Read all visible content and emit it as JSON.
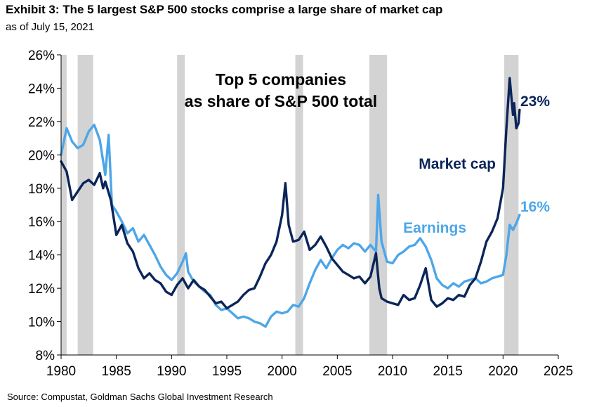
{
  "header": {
    "title": "Exhibit 3: The 5 largest S&P 500 stocks comprise a large share of market cap",
    "subtitle": "as of July 15, 2021"
  },
  "footer": {
    "source": "Source: Compustat, Goldman Sachs Global Investment Research"
  },
  "colors": {
    "market_cap": "#0b2559",
    "earnings": "#4da6e8",
    "recession": "#d3d3d3",
    "axis": "#000000"
  },
  "chart_data": {
    "type": "line",
    "title_lines": [
      "Top 5 companies",
      "as share of S&P 500 total"
    ],
    "xlabel": "",
    "ylabel": "",
    "xlim": [
      1980,
      2025
    ],
    "ylim": [
      8,
      26
    ],
    "x_ticks": [
      1980,
      1985,
      1990,
      1995,
      2000,
      2005,
      2010,
      2015,
      2020,
      2025
    ],
    "x_tick_labels": [
      "1980",
      "1985",
      "1990",
      "1995",
      "2000",
      "2005",
      "2010",
      "2015",
      "2020",
      "2025"
    ],
    "y_ticks": [
      8,
      10,
      12,
      14,
      16,
      18,
      20,
      22,
      24,
      26
    ],
    "y_tick_labels": [
      "8%",
      "10%",
      "12%",
      "14%",
      "16%",
      "18%",
      "20%",
      "22%",
      "24%",
      "26%"
    ],
    "grid": false,
    "recessions": [
      [
        1980.0,
        1980.5
      ],
      [
        1981.5,
        1982.9
      ],
      [
        1990.5,
        1991.2
      ],
      [
        2001.2,
        2001.9
      ],
      [
        2007.9,
        2009.5
      ],
      [
        2020.1,
        2021.4
      ]
    ],
    "series": [
      {
        "name": "Market cap",
        "end_label": "23%",
        "color": "#0b2559",
        "x": [
          1980.0,
          1980.5,
          1981.0,
          1981.5,
          1982.0,
          1982.5,
          1983.0,
          1983.5,
          1983.8,
          1984.0,
          1984.5,
          1985.0,
          1985.5,
          1986.0,
          1986.5,
          1987.0,
          1987.5,
          1988.0,
          1988.5,
          1989.0,
          1989.5,
          1990.0,
          1990.5,
          1991.0,
          1991.5,
          1992.0,
          1992.5,
          1993.0,
          1993.5,
          1994.0,
          1994.5,
          1995.0,
          1995.5,
          1996.0,
          1996.5,
          1997.0,
          1997.5,
          1998.0,
          1998.5,
          1999.0,
          1999.5,
          2000.0,
          2000.3,
          2000.6,
          2001.0,
          2001.5,
          2002.0,
          2002.5,
          2003.0,
          2003.5,
          2004.0,
          2004.5,
          2005.0,
          2005.5,
          2006.0,
          2006.5,
          2007.0,
          2007.5,
          2008.0,
          2008.5,
          2008.8,
          2009.0,
          2009.5,
          2010.0,
          2010.5,
          2011.0,
          2011.5,
          2012.0,
          2012.5,
          2013.0,
          2013.5,
          2014.0,
          2014.5,
          2015.0,
          2015.5,
          2016.0,
          2016.5,
          2017.0,
          2017.5,
          2018.0,
          2018.5,
          2019.0,
          2019.5,
          2020.0,
          2020.3,
          2020.6,
          2020.9,
          2021.0,
          2021.2,
          2021.4,
          2021.5
        ],
        "values": [
          19.6,
          19.0,
          17.3,
          17.8,
          18.3,
          18.5,
          18.2,
          18.9,
          18.0,
          18.4,
          17.3,
          15.2,
          15.8,
          14.7,
          14.2,
          13.2,
          12.6,
          12.9,
          12.5,
          12.3,
          11.8,
          11.6,
          12.2,
          12.6,
          12.0,
          12.5,
          12.1,
          11.9,
          11.5,
          11.1,
          11.2,
          10.8,
          11.0,
          11.2,
          11.6,
          11.9,
          12.0,
          12.7,
          13.5,
          14.0,
          14.8,
          16.4,
          18.3,
          15.8,
          14.8,
          14.9,
          15.4,
          14.3,
          14.6,
          15.1,
          14.5,
          13.8,
          13.4,
          13.0,
          12.8,
          12.6,
          12.7,
          12.3,
          12.7,
          14.1,
          12.0,
          11.4,
          11.2,
          11.1,
          11.0,
          11.6,
          11.3,
          11.4,
          12.2,
          13.2,
          11.3,
          10.9,
          11.1,
          11.4,
          11.3,
          11.6,
          11.5,
          12.2,
          12.6,
          13.6,
          14.8,
          15.4,
          16.2,
          18.0,
          21.6,
          24.6,
          22.4,
          23.1,
          21.6,
          21.9,
          22.7
        ]
      },
      {
        "name": "Earnings",
        "end_label": "16%",
        "color": "#4da6e8",
        "x": [
          1980.0,
          1980.5,
          1981.0,
          1981.5,
          1982.0,
          1982.5,
          1983.0,
          1983.5,
          1984.0,
          1984.3,
          1984.6,
          1985.0,
          1985.5,
          1986.0,
          1986.5,
          1987.0,
          1987.5,
          1988.0,
          1988.5,
          1989.0,
          1989.5,
          1990.0,
          1990.5,
          1991.0,
          1991.3,
          1991.5,
          1992.0,
          1992.5,
          1993.0,
          1993.5,
          1994.0,
          1994.5,
          1995.0,
          1995.5,
          1996.0,
          1996.5,
          1997.0,
          1997.5,
          1998.0,
          1998.5,
          1999.0,
          1999.5,
          2000.0,
          2000.5,
          2001.0,
          2001.5,
          2002.0,
          2002.5,
          2003.0,
          2003.5,
          2004.0,
          2004.5,
          2005.0,
          2005.5,
          2006.0,
          2006.5,
          2007.0,
          2007.5,
          2008.0,
          2008.5,
          2008.7,
          2009.0,
          2009.5,
          2010.0,
          2010.5,
          2011.0,
          2011.5,
          2012.0,
          2012.5,
          2013.0,
          2013.5,
          2014.0,
          2014.5,
          2015.0,
          2015.5,
          2016.0,
          2016.5,
          2017.0,
          2017.5,
          2018.0,
          2018.5,
          2019.0,
          2019.5,
          2020.0,
          2020.3,
          2020.6,
          2020.9,
          2021.2,
          2021.5
        ],
        "values": [
          20.0,
          21.6,
          20.8,
          20.4,
          20.6,
          21.4,
          21.8,
          20.9,
          18.8,
          21.2,
          17.0,
          16.6,
          16.0,
          15.3,
          15.6,
          14.8,
          15.2,
          14.6,
          14.0,
          13.3,
          12.8,
          12.5,
          12.9,
          13.6,
          14.1,
          13.0,
          12.4,
          12.1,
          11.8,
          11.6,
          11.0,
          10.7,
          10.8,
          10.5,
          10.2,
          10.3,
          10.2,
          10.0,
          9.9,
          9.7,
          10.3,
          10.6,
          10.5,
          10.6,
          11.0,
          10.9,
          11.4,
          12.3,
          13.1,
          13.7,
          13.2,
          13.8,
          14.3,
          14.6,
          14.4,
          14.7,
          14.6,
          14.2,
          14.6,
          14.2,
          17.6,
          14.8,
          13.6,
          13.5,
          14.0,
          14.2,
          14.5,
          14.6,
          15.0,
          14.5,
          13.7,
          12.6,
          12.2,
          12.0,
          12.3,
          12.1,
          12.4,
          12.5,
          12.6,
          12.3,
          12.4,
          12.6,
          12.7,
          12.8,
          14.0,
          15.8,
          15.5,
          15.9,
          16.4
        ]
      }
    ]
  }
}
